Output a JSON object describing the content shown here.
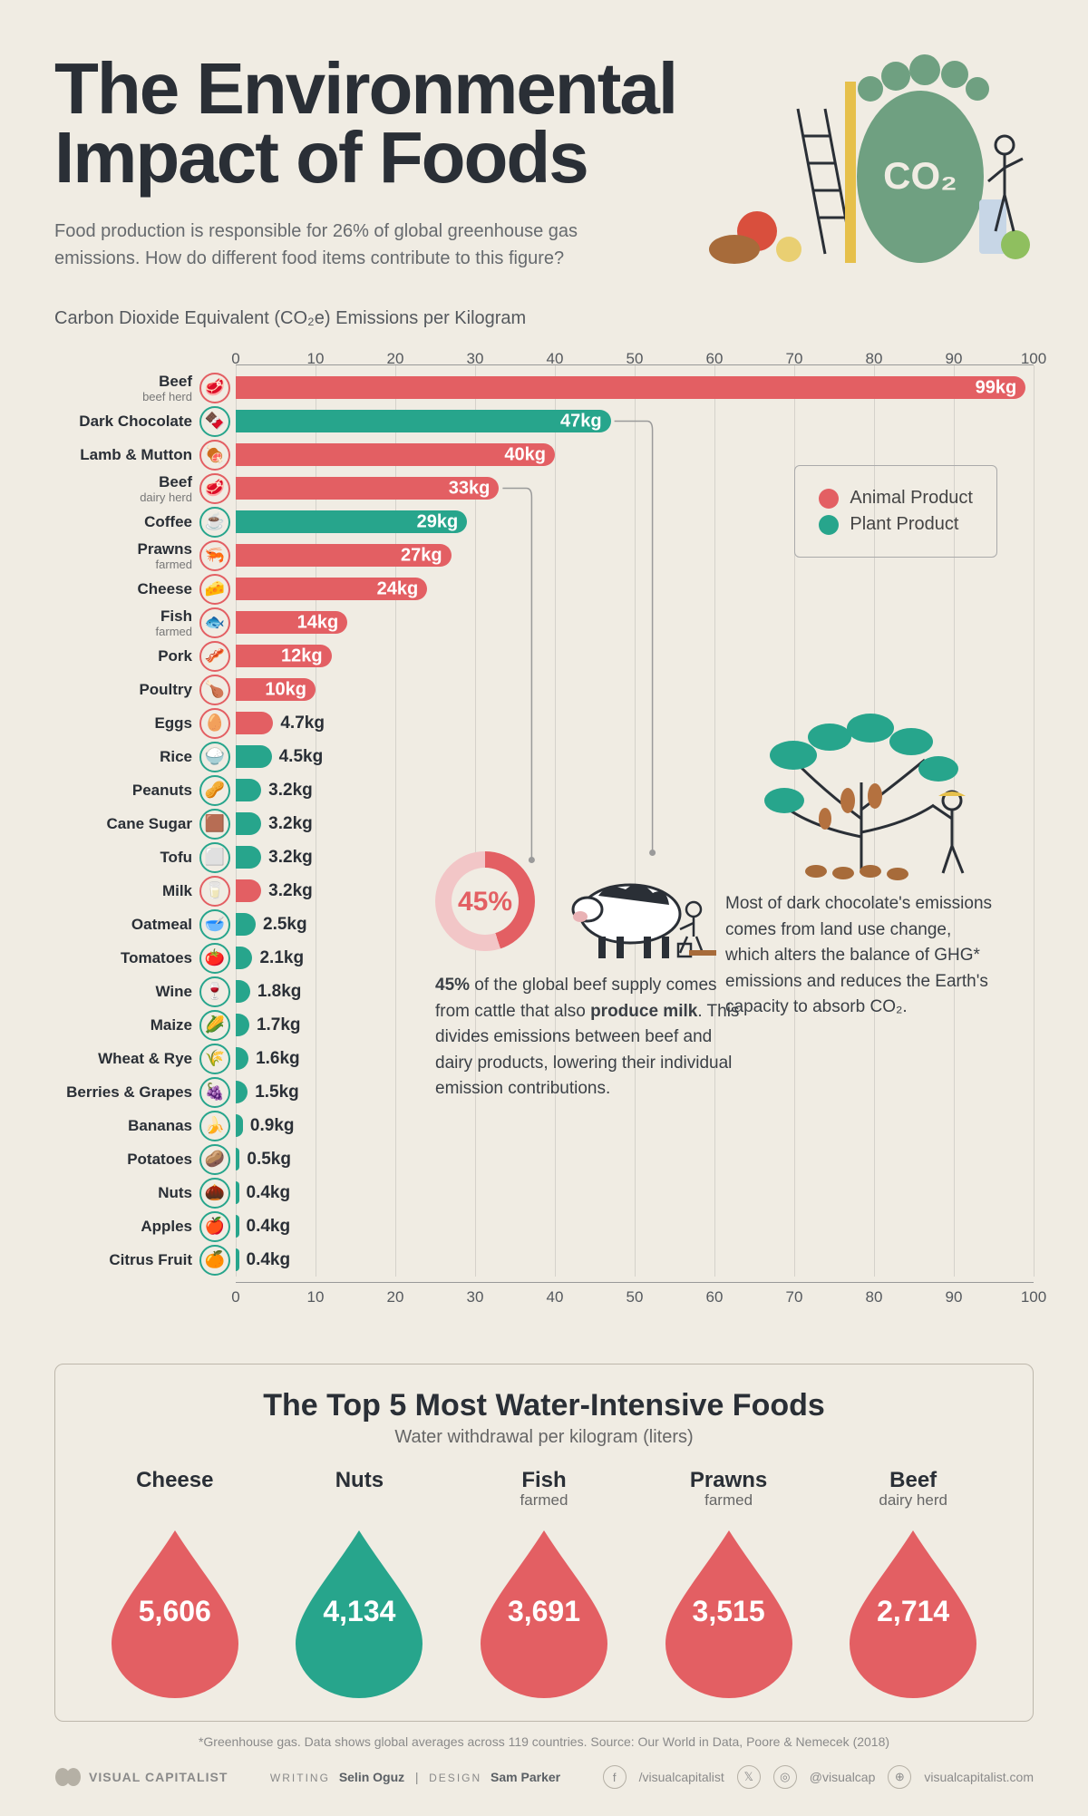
{
  "colors": {
    "animal": "#e35f63",
    "plant": "#27a58c",
    "background": "#f0ece3",
    "text": "#2a2f36",
    "muted": "#666a6e",
    "grid": "rgba(120,120,120,0.22)",
    "axis": "#999999",
    "footprint": "#6fa081"
  },
  "title": "The Environmental Impact of Foods",
  "subtitle": "Food production is responsible for 26% of global greenhouse gas emissions. How do different food items contribute to this figure?",
  "axis_title": "Carbon Dioxide Equivalent (CO₂e) Emissions per Kilogram",
  "hero_footprint_label": "CO₂",
  "axis": {
    "min": 0,
    "max": 100,
    "step": 10
  },
  "legend": {
    "animal": "Animal Product",
    "plant": "Plant Product"
  },
  "items": [
    {
      "name": "Beef",
      "sub": "beef herd",
      "value": 99,
      "display": "99kg",
      "type": "animal",
      "icon_ring": "animal",
      "label_in": true
    },
    {
      "name": "Dark Chocolate",
      "sub": "",
      "value": 47,
      "display": "47kg",
      "type": "plant",
      "icon_ring": "plant",
      "label_in": true
    },
    {
      "name": "Lamb & Mutton",
      "sub": "",
      "value": 40,
      "display": "40kg",
      "type": "animal",
      "icon_ring": "animal",
      "label_in": true
    },
    {
      "name": "Beef",
      "sub": "dairy herd",
      "value": 33,
      "display": "33kg",
      "type": "animal",
      "icon_ring": "animal",
      "label_in": true
    },
    {
      "name": "Coffee",
      "sub": "",
      "value": 29,
      "display": "29kg",
      "type": "plant",
      "icon_ring": "plant",
      "label_in": true
    },
    {
      "name": "Prawns",
      "sub": "farmed",
      "value": 27,
      "display": "27kg",
      "type": "animal",
      "icon_ring": "animal",
      "label_in": true
    },
    {
      "name": "Cheese",
      "sub": "",
      "value": 24,
      "display": "24kg",
      "type": "animal",
      "icon_ring": "animal",
      "label_in": true
    },
    {
      "name": "Fish",
      "sub": "farmed",
      "value": 14,
      "display": "14kg",
      "type": "animal",
      "icon_ring": "animal",
      "label_in": true
    },
    {
      "name": "Pork",
      "sub": "",
      "value": 12,
      "display": "12kg",
      "type": "animal",
      "icon_ring": "animal",
      "label_in": true
    },
    {
      "name": "Poultry",
      "sub": "",
      "value": 10,
      "display": "10kg",
      "type": "animal",
      "icon_ring": "animal",
      "label_in": true
    },
    {
      "name": "Eggs",
      "sub": "",
      "value": 4.7,
      "display": "4.7kg",
      "type": "animal",
      "icon_ring": "animal",
      "label_in": false
    },
    {
      "name": "Rice",
      "sub": "",
      "value": 4.5,
      "display": "4.5kg",
      "type": "plant",
      "icon_ring": "plant",
      "label_in": false
    },
    {
      "name": "Peanuts",
      "sub": "",
      "value": 3.2,
      "display": "3.2kg",
      "type": "plant",
      "icon_ring": "plant",
      "label_in": false
    },
    {
      "name": "Cane Sugar",
      "sub": "",
      "value": 3.2,
      "display": "3.2kg",
      "type": "plant",
      "icon_ring": "plant",
      "label_in": false
    },
    {
      "name": "Tofu",
      "sub": "",
      "value": 3.2,
      "display": "3.2kg",
      "type": "plant",
      "icon_ring": "plant",
      "label_in": false
    },
    {
      "name": "Milk",
      "sub": "",
      "value": 3.2,
      "display": "3.2kg",
      "type": "animal",
      "icon_ring": "animal",
      "label_in": false
    },
    {
      "name": "Oatmeal",
      "sub": "",
      "value": 2.5,
      "display": "2.5kg",
      "type": "plant",
      "icon_ring": "plant",
      "label_in": false
    },
    {
      "name": "Tomatoes",
      "sub": "",
      "value": 2.1,
      "display": "2.1kg",
      "type": "plant",
      "icon_ring": "plant",
      "label_in": false
    },
    {
      "name": "Wine",
      "sub": "",
      "value": 1.8,
      "display": "1.8kg",
      "type": "plant",
      "icon_ring": "plant",
      "label_in": false
    },
    {
      "name": "Maize",
      "sub": "",
      "value": 1.7,
      "display": "1.7kg",
      "type": "plant",
      "icon_ring": "plant",
      "label_in": false
    },
    {
      "name": "Wheat & Rye",
      "sub": "",
      "value": 1.6,
      "display": "1.6kg",
      "type": "plant",
      "icon_ring": "plant",
      "label_in": false
    },
    {
      "name": "Berries & Grapes",
      "sub": "",
      "value": 1.5,
      "display": "1.5kg",
      "type": "plant",
      "icon_ring": "plant",
      "label_in": false
    },
    {
      "name": "Bananas",
      "sub": "",
      "value": 0.9,
      "display": "0.9kg",
      "type": "plant",
      "icon_ring": "plant",
      "label_in": false
    },
    {
      "name": "Potatoes",
      "sub": "",
      "value": 0.5,
      "display": "0.5kg",
      "type": "plant",
      "icon_ring": "plant",
      "label_in": false
    },
    {
      "name": "Nuts",
      "sub": "",
      "value": 0.4,
      "display": "0.4kg",
      "type": "plant",
      "icon_ring": "plant",
      "label_in": false
    },
    {
      "name": "Apples",
      "sub": "",
      "value": 0.4,
      "display": "0.4kg",
      "type": "plant",
      "icon_ring": "plant",
      "label_in": false
    },
    {
      "name": "Citrus Fruit",
      "sub": "",
      "value": 0.4,
      "display": "0.4kg",
      "type": "plant",
      "icon_ring": "plant",
      "label_in": false
    }
  ],
  "callout_beef": {
    "percent_label": "45%",
    "text_prefix": "45%",
    "text_rest": " of the global beef supply comes from cattle that also ",
    "bold": "produce milk",
    "text_end": ". This divides emissions between beef and dairy products, lowering their individual emission contributions."
  },
  "callout_chocolate": "Most of dark chocolate's emissions comes from land use change, which alters the balance of GHG* emissions and reduces the Earth's capacity to absorb CO₂.",
  "panel": {
    "title": "The Top 5 Most Water-Intensive Foods",
    "subtitle": "Water withdrawal per kilogram (liters)",
    "items": [
      {
        "name": "Cheese",
        "sub": "",
        "value": "5,606",
        "type": "animal"
      },
      {
        "name": "Nuts",
        "sub": "",
        "value": "4,134",
        "type": "plant"
      },
      {
        "name": "Fish",
        "sub": "farmed",
        "value": "3,691",
        "type": "animal"
      },
      {
        "name": "Prawns",
        "sub": "farmed",
        "value": "3,515",
        "type": "animal"
      },
      {
        "name": "Beef",
        "sub": "dairy herd",
        "value": "2,714",
        "type": "animal"
      }
    ]
  },
  "footnote": "*Greenhouse gas. Data shows global averages across 119 countries. Source: Our World in Data, Poore & Nemecek (2018)",
  "footer": {
    "brand": "VISUAL CAPITALIST",
    "writing_label": "WRITING",
    "writing": "Selin Oguz",
    "design_label": "DESIGN",
    "design": "Sam Parker",
    "handles": {
      "fb": "/visualcapitalist",
      "tw": "@visualcap",
      "web": "visualcapitalist.com"
    }
  }
}
